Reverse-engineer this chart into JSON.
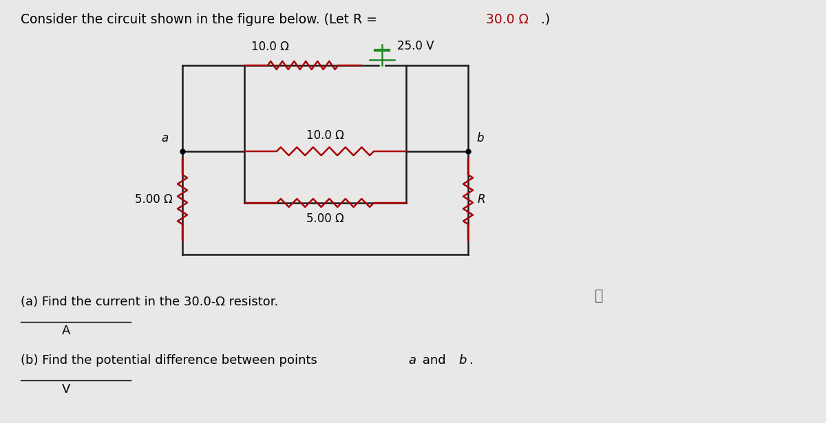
{
  "title_normal": "Consider the circuit shown in the figure below. (Let R = ",
  "title_red": "30.0 Ω",
  "title_end": ".)",
  "bg_color": "#e8e8e8",
  "wire_color": "#1a1a1a",
  "resistor_color": "#aa0000",
  "battery_color": "#228822",
  "voltage": "25.0 V",
  "r_top": "10.0 Ω",
  "r_mid": "10.0 Ω",
  "r_bot_inner": "5.00 Ω",
  "r_left": "5.00 Ω",
  "r_right": "R",
  "label_a": "a",
  "label_b": "b",
  "q1": "(a) Find the current in the 30.0-Ω resistor.",
  "q1_unit": "A",
  "q2_pre": "(b) Find the potential difference between points ",
  "q2_a": "a",
  "q2_mid": " and ",
  "q2_b": "b",
  "q2_end": ".",
  "q2_unit": "V",
  "info_symbol": "ⓘ",
  "font_title": 13.5,
  "font_circuit": 12,
  "font_question": 13
}
